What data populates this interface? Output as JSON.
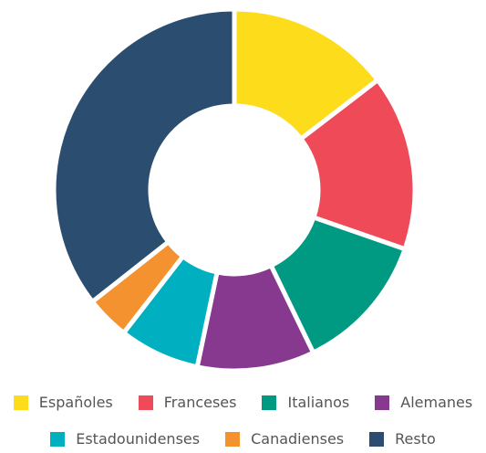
{
  "chart_data": {
    "type": "donut",
    "categories": [
      "Españoles",
      "Franceses",
      "Italianos",
      "Alemanes",
      "Estadounidenses",
      "Canadienses",
      "Resto"
    ],
    "values": [
      14.6,
      15.7,
      12.5,
      10.5,
      7.2,
      3.9,
      35.6
    ],
    "colors": [
      "#fddc1c",
      "#ef4a58",
      "#009a83",
      "#86398f",
      "#00b0c0",
      "#f3922f",
      "#2b4e70"
    ],
    "legend": "bottom"
  }
}
